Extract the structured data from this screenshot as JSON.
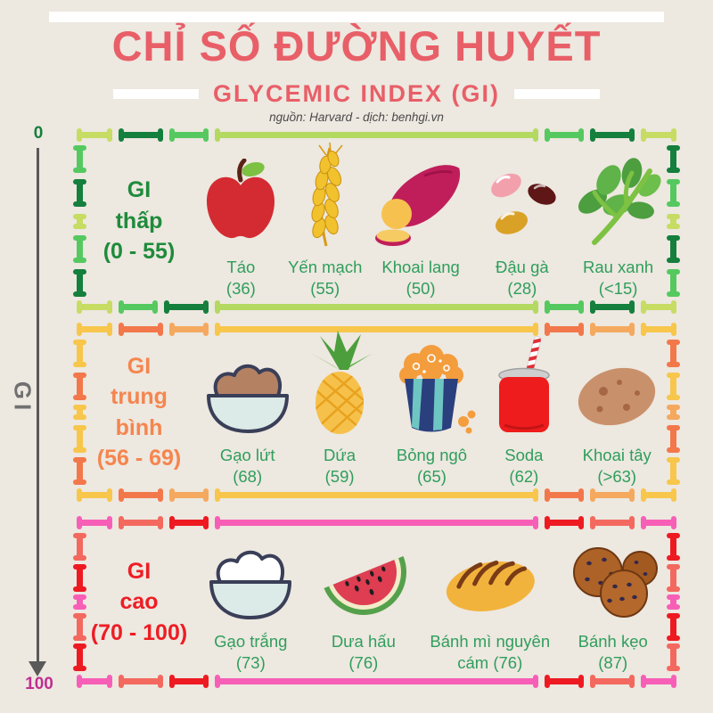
{
  "header": {
    "title": "CHỈ SỐ ĐƯỜNG HUYẾT",
    "subtitle": "GLYCEMIC INDEX (GI)",
    "source": "nguồn: Harvard - dịch: benhgi.vn"
  },
  "axis": {
    "top": "0",
    "bottom": "100",
    "label": "GI"
  },
  "colors": {
    "background": "#EDE8E0",
    "title": "#E85F68",
    "low_accent": "#1F8B3B",
    "medium_accent": "#F5854E",
    "high_accent": "#EE1D24",
    "food_label": "#2F9E5C",
    "axis_gray": "#595959",
    "hundred_label": "#BF2E90"
  },
  "sections": [
    {
      "name": "GI thấp",
      "range": "(0 - 55)",
      "label_lines": [
        "GI",
        "thấp",
        "(0 - 55)"
      ],
      "foods": [
        {
          "icon": "apple",
          "line1": "Táo",
          "line2": "(36)"
        },
        {
          "icon": "oats",
          "line1": "Yến mạch",
          "line2": "(55)"
        },
        {
          "icon": "sweet-potato",
          "line1": "Khoai lang",
          "line2": "(50)"
        },
        {
          "icon": "beans",
          "line1": "Đậu gà",
          "line2": "(28)"
        },
        {
          "icon": "leafy-greens",
          "line1": "Rau xanh",
          "line2": "(<15)"
        }
      ]
    },
    {
      "name": "GI trung bình",
      "range": "(56 - 69)",
      "label_lines": [
        "GI",
        "trung",
        "bình",
        "(56 - 69)"
      ],
      "foods": [
        {
          "icon": "brown-rice-bowl",
          "line1": "Gạo lứt",
          "line2": "(68)"
        },
        {
          "icon": "pineapple",
          "line1": "Dứa",
          "line2": "(59)"
        },
        {
          "icon": "popcorn",
          "line1": "Bỏng ngô",
          "line2": "(65)"
        },
        {
          "icon": "soda-can",
          "line1": "Soda",
          "line2": "(62)"
        },
        {
          "icon": "potato",
          "line1": "Khoai tây",
          "line2": "(>63)"
        }
      ]
    },
    {
      "name": "GI cao",
      "range": "(70 - 100)",
      "label_lines": [
        "GI",
        "cao",
        "(70 - 100)"
      ],
      "foods": [
        {
          "icon": "white-rice-bowl",
          "line1": "Gạo trắng",
          "line2": "(73)"
        },
        {
          "icon": "watermelon",
          "line1": "Dưa hấu",
          "line2": "(76)"
        },
        {
          "icon": "whole-wheat-bread",
          "line1": "Bánh mì nguyên",
          "line2": "cám (76)"
        },
        {
          "icon": "cookies",
          "line1": "Bánh kẹo",
          "line2": "(87)"
        }
      ]
    }
  ]
}
